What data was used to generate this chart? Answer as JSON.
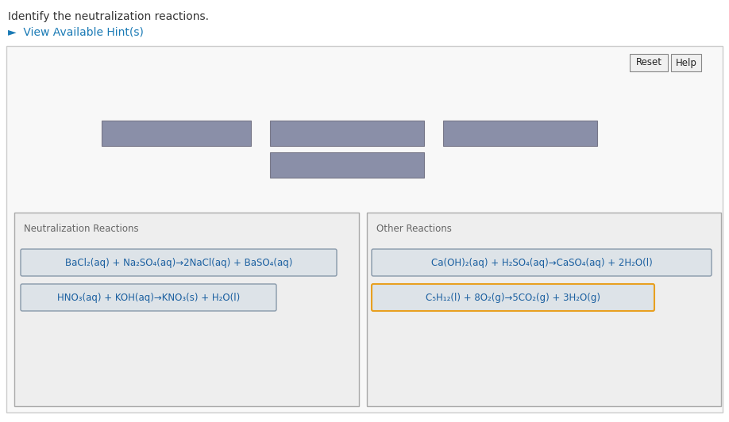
{
  "title_text": "Identify the neutralization reactions.",
  "hint_text": "►  View Available Hint(s)",
  "bg_color": "#ffffff",
  "outer_box_edge": "#cccccc",
  "neutralization_label": "Neutralization Reactions",
  "other_label": "Other Reactions",
  "neut_reaction1": "BaCl₂(aq) + Na₂SO₄(aq)→2NaCl(aq) + BaSO₄(aq)",
  "neut_reaction2": "HNO₃(aq) + KOH(aq)→KNO₃(s) + H₂O(l)",
  "other_reaction1": "Ca(OH)₂(aq) + H₂SO₄(aq)→CaSO₄(aq) + 2H₂O(l)",
  "other_reaction2": "C₅H₁₂(l) + 8O₂(g)→5CO₂(g) + 3H₂O(g)",
  "other_reaction2_border": "#e8a020",
  "reset_label": "Reset",
  "help_label": "Help",
  "text_color": "#333333",
  "link_color": "#1a7ab5",
  "reaction_text_color": "#1a5fa0",
  "drag_box_color": "#8a8fa8",
  "reaction_box_bg": "#dde3e8",
  "reaction_box_edge": "#8899aa",
  "panel_bg": "#eeeeee",
  "panel_edge": "#aaaaaa",
  "outer_box_bg": "#f8f8f8",
  "button_bg": "#f0f0f0",
  "button_edge": "#888888"
}
